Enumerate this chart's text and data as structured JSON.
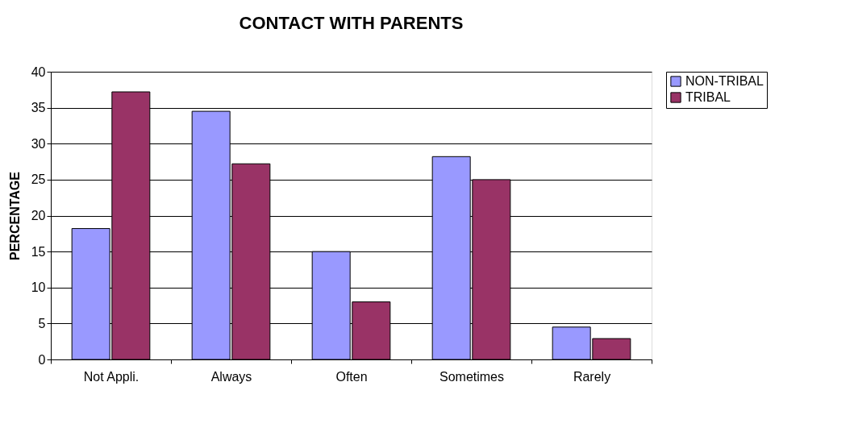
{
  "chart_data": {
    "type": "bar",
    "title": "CONTACT WITH PARENTS",
    "ylabel": "PERCENTAGE",
    "categories": [
      "Not Appli.",
      "Always",
      "Often",
      "Sometimes",
      "Rarely"
    ],
    "series": [
      {
        "name": "NON-TRIBAL",
        "color": "#9999ff",
        "values": [
          18.2,
          34.5,
          15.0,
          28.2,
          4.5
        ]
      },
      {
        "name": "TRIBAL",
        "color": "#993366",
        "values": [
          37.2,
          27.2,
          8.0,
          25.0,
          2.9
        ]
      }
    ],
    "ylim": [
      0,
      40
    ],
    "yticks": [
      0,
      5,
      10,
      15,
      20,
      25,
      30,
      35,
      40
    ],
    "grid": "y",
    "legend": "right"
  }
}
